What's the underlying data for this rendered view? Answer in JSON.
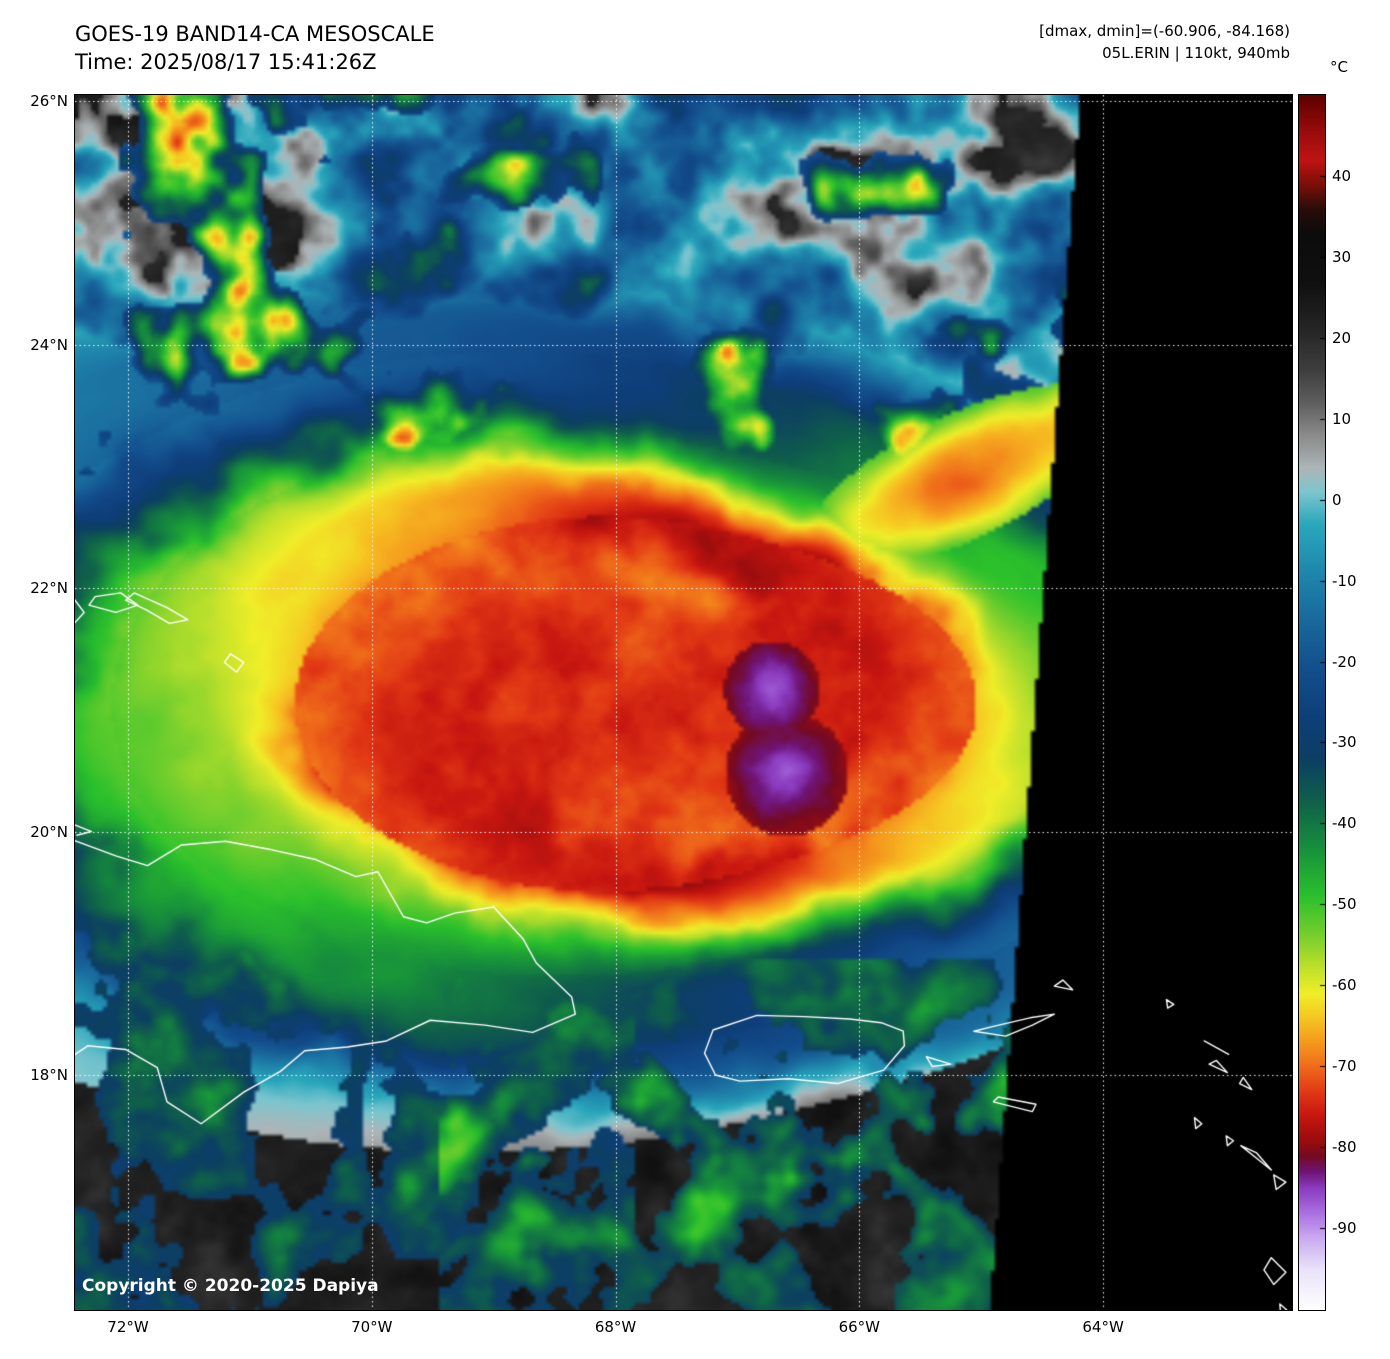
{
  "header": {
    "title": "GOES-19 BAND14-CA MESOSCALE",
    "time": "Time: 2025/08/17 15:41:26Z",
    "dmax_dmin": "[dmax, dmin]=(-60.906, -84.168)",
    "storm_info": "05L.ERIN | 110kt, 940mb"
  },
  "colorbar": {
    "unit": "°C",
    "domain": [
      50,
      -100
    ],
    "tick_values": [
      40,
      30,
      20,
      10,
      0,
      -10,
      -20,
      -30,
      -40,
      -50,
      -60,
      -70,
      -80,
      -90
    ],
    "stops": [
      {
        "t": 50,
        "c": "#600000"
      },
      {
        "t": 46,
        "c": "#930b0b"
      },
      {
        "t": 42,
        "c": "#c01414"
      },
      {
        "t": 39,
        "c": "#7c0f08"
      },
      {
        "t": 36,
        "c": "#2a0d08"
      },
      {
        "t": 33,
        "c": "#0c0c0c"
      },
      {
        "t": 27,
        "c": "#101010"
      },
      {
        "t": 21,
        "c": "#262626"
      },
      {
        "t": 16,
        "c": "#3f3f3f"
      },
      {
        "t": 12,
        "c": "#5f5f5f"
      },
      {
        "t": 8,
        "c": "#8b8b8b"
      },
      {
        "t": 4,
        "c": "#adb6b8"
      },
      {
        "t": 1,
        "c": "#7cc6cf"
      },
      {
        "t": -3,
        "c": "#2aa8bc"
      },
      {
        "t": -9,
        "c": "#1f86ac"
      },
      {
        "t": -15,
        "c": "#19689c"
      },
      {
        "t": -21,
        "c": "#134e8c"
      },
      {
        "t": -27,
        "c": "#0e3e7a"
      },
      {
        "t": -32,
        "c": "#0c3f63"
      },
      {
        "t": -37,
        "c": "#0f5f4b"
      },
      {
        "t": -43,
        "c": "#17903c"
      },
      {
        "t": -49,
        "c": "#2cc12c"
      },
      {
        "t": -54,
        "c": "#79d02d"
      },
      {
        "t": -58,
        "c": "#c3e22b"
      },
      {
        "t": -61,
        "c": "#f0ee29"
      },
      {
        "t": -64,
        "c": "#f6c522"
      },
      {
        "t": -67,
        "c": "#f59a1e"
      },
      {
        "t": -70,
        "c": "#ef6a1a"
      },
      {
        "t": -73,
        "c": "#e23a15"
      },
      {
        "t": -76,
        "c": "#c81710"
      },
      {
        "t": -79,
        "c": "#9c0d0d"
      },
      {
        "t": -81,
        "c": "#740a22"
      },
      {
        "t": -83,
        "c": "#6f1577"
      },
      {
        "t": -85,
        "c": "#8b3bbf"
      },
      {
        "t": -88,
        "c": "#a96ee0"
      },
      {
        "t": -91,
        "c": "#c9a8f0"
      },
      {
        "t": -95,
        "c": "#e9e2fa"
      },
      {
        "t": -100,
        "c": "#ffffff"
      }
    ]
  },
  "map": {
    "copyright": "Copyright © 2020-2025 Dapiya",
    "lat_range": [
      16.07,
      26.05
    ],
    "lon_range_w": [
      72.435,
      62.45
    ],
    "lat_ticks": [
      {
        "label": "26°N",
        "lat": 26
      },
      {
        "label": "24°N",
        "lat": 24
      },
      {
        "label": "22°N",
        "lat": 22
      },
      {
        "label": "20°N",
        "lat": 20
      },
      {
        "label": "18°N",
        "lat": 18
      }
    ],
    "lon_ticks": [
      {
        "label": "72°W",
        "lon": 72
      },
      {
        "label": "70°W",
        "lon": 70
      },
      {
        "label": "68°W",
        "lon": 68
      },
      {
        "label": "66°W",
        "lon": 66
      },
      {
        "label": "64°W",
        "lon": 64
      }
    ],
    "coastlines": [
      {
        "name": "hispaniola",
        "closed": false,
        "points": [
          [
            72.45,
            19.93
          ],
          [
            72.1,
            19.8
          ],
          [
            71.84,
            19.72
          ],
          [
            71.56,
            19.89
          ],
          [
            71.2,
            19.92
          ],
          [
            70.82,
            19.85
          ],
          [
            70.46,
            19.77
          ],
          [
            70.13,
            19.63
          ],
          [
            69.95,
            19.67
          ],
          [
            69.74,
            19.3
          ],
          [
            69.55,
            19.25
          ],
          [
            69.32,
            19.33
          ],
          [
            69.0,
            19.38
          ],
          [
            68.76,
            19.12
          ],
          [
            68.65,
            18.92
          ],
          [
            68.36,
            18.64
          ],
          [
            68.33,
            18.5
          ],
          [
            68.68,
            18.35
          ],
          [
            69.07,
            18.41
          ],
          [
            69.52,
            18.45
          ],
          [
            69.88,
            18.28
          ],
          [
            70.2,
            18.23
          ],
          [
            70.55,
            18.2
          ],
          [
            70.75,
            18.03
          ],
          [
            71.05,
            17.86
          ],
          [
            71.4,
            17.6
          ],
          [
            71.68,
            17.78
          ],
          [
            71.76,
            18.06
          ],
          [
            72.02,
            18.21
          ],
          [
            72.33,
            18.24
          ],
          [
            72.45,
            18.16
          ]
        ]
      },
      {
        "name": "tortuga",
        "closed": false,
        "points": [
          [
            72.45,
            20.06
          ],
          [
            72.3,
            20.0
          ],
          [
            72.42,
            19.97
          ]
        ]
      },
      {
        "name": "puerto-rico",
        "closed": true,
        "points": [
          [
            67.2,
            18.37
          ],
          [
            66.84,
            18.49
          ],
          [
            66.45,
            18.48
          ],
          [
            66.08,
            18.46
          ],
          [
            65.82,
            18.43
          ],
          [
            65.64,
            18.36
          ],
          [
            65.63,
            18.24
          ],
          [
            65.8,
            18.04
          ],
          [
            66.18,
            17.93
          ],
          [
            66.58,
            17.97
          ],
          [
            66.98,
            17.95
          ],
          [
            67.18,
            18.0
          ],
          [
            67.27,
            18.18
          ]
        ]
      },
      {
        "name": "vieques",
        "closed": true,
        "points": [
          [
            65.45,
            18.15
          ],
          [
            65.25,
            18.09
          ],
          [
            65.4,
            18.07
          ]
        ]
      },
      {
        "name": "turks-islands",
        "closed": true,
        "points": [
          [
            71.95,
            21.96
          ],
          [
            71.68,
            21.84
          ],
          [
            71.51,
            21.74
          ],
          [
            71.66,
            21.71
          ],
          [
            71.85,
            21.82
          ],
          [
            72.02,
            21.9
          ]
        ]
      },
      {
        "name": "caicos-bank",
        "closed": true,
        "points": [
          [
            72.32,
            21.86
          ],
          [
            72.1,
            21.8
          ],
          [
            71.92,
            21.86
          ],
          [
            72.06,
            21.96
          ],
          [
            72.27,
            21.93
          ]
        ]
      },
      {
        "name": "grand-turk",
        "closed": true,
        "points": [
          [
            71.16,
            21.46
          ],
          [
            71.05,
            21.39
          ],
          [
            71.11,
            21.31
          ],
          [
            71.21,
            21.39
          ]
        ]
      },
      {
        "name": "edge-islet",
        "closed": false,
        "points": [
          [
            72.45,
            21.92
          ],
          [
            72.36,
            21.8
          ],
          [
            72.45,
            21.7
          ]
        ]
      },
      {
        "name": "virgin-islands",
        "closed": true,
        "points": [
          [
            65.06,
            18.36
          ],
          [
            64.8,
            18.32
          ],
          [
            64.58,
            18.41
          ],
          [
            64.4,
            18.5
          ],
          [
            64.6,
            18.47
          ],
          [
            64.9,
            18.4
          ]
        ]
      },
      {
        "name": "anegada",
        "closed": true,
        "points": [
          [
            64.4,
            18.73
          ],
          [
            64.25,
            18.7
          ],
          [
            64.33,
            18.78
          ]
        ]
      },
      {
        "name": "st-croix",
        "closed": true,
        "points": [
          [
            64.9,
            17.78
          ],
          [
            64.58,
            17.7
          ],
          [
            64.55,
            17.76
          ],
          [
            64.86,
            17.82
          ]
        ]
      },
      {
        "name": "sombrero",
        "closed": true,
        "points": [
          [
            63.48,
            18.62
          ],
          [
            63.42,
            18.58
          ],
          [
            63.47,
            18.55
          ]
        ]
      },
      {
        "name": "anguilla",
        "closed": true,
        "points": [
          [
            63.17,
            18.28
          ],
          [
            62.97,
            18.17
          ],
          [
            63.06,
            18.22
          ]
        ]
      },
      {
        "name": "st-martin",
        "closed": true,
        "points": [
          [
            63.13,
            18.09
          ],
          [
            62.98,
            18.02
          ],
          [
            63.07,
            18.12
          ]
        ]
      },
      {
        "name": "st-barth",
        "closed": true,
        "points": [
          [
            62.88,
            17.93
          ],
          [
            62.78,
            17.88
          ],
          [
            62.85,
            17.98
          ]
        ]
      },
      {
        "name": "saba",
        "closed": true,
        "points": [
          [
            63.25,
            17.65
          ],
          [
            63.19,
            17.6
          ],
          [
            63.24,
            17.56
          ]
        ]
      },
      {
        "name": "st-eustatius",
        "closed": true,
        "points": [
          [
            62.99,
            17.5
          ],
          [
            62.93,
            17.46
          ],
          [
            62.98,
            17.42
          ]
        ]
      },
      {
        "name": "st-kitts",
        "closed": true,
        "points": [
          [
            62.87,
            17.42
          ],
          [
            62.72,
            17.3
          ],
          [
            62.62,
            17.22
          ],
          [
            62.74,
            17.36
          ]
        ]
      },
      {
        "name": "nevis",
        "closed": true,
        "points": [
          [
            62.6,
            17.18
          ],
          [
            62.5,
            17.12
          ],
          [
            62.58,
            17.06
          ]
        ]
      },
      {
        "name": "montserrat",
        "closed": true,
        "points": [
          [
            62.62,
            16.5
          ],
          [
            62.5,
            16.38
          ],
          [
            62.6,
            16.28
          ],
          [
            62.68,
            16.4
          ]
        ]
      },
      {
        "name": "se-islet",
        "closed": true,
        "points": [
          [
            62.55,
            16.12
          ],
          [
            62.47,
            16.05
          ],
          [
            62.54,
            16.0
          ]
        ]
      }
    ]
  },
  "colors": {
    "page_bg": "#ffffff",
    "no_data": "#000000",
    "grid": "#ffffff",
    "coastline": "#ffffff",
    "text": "#000000"
  }
}
